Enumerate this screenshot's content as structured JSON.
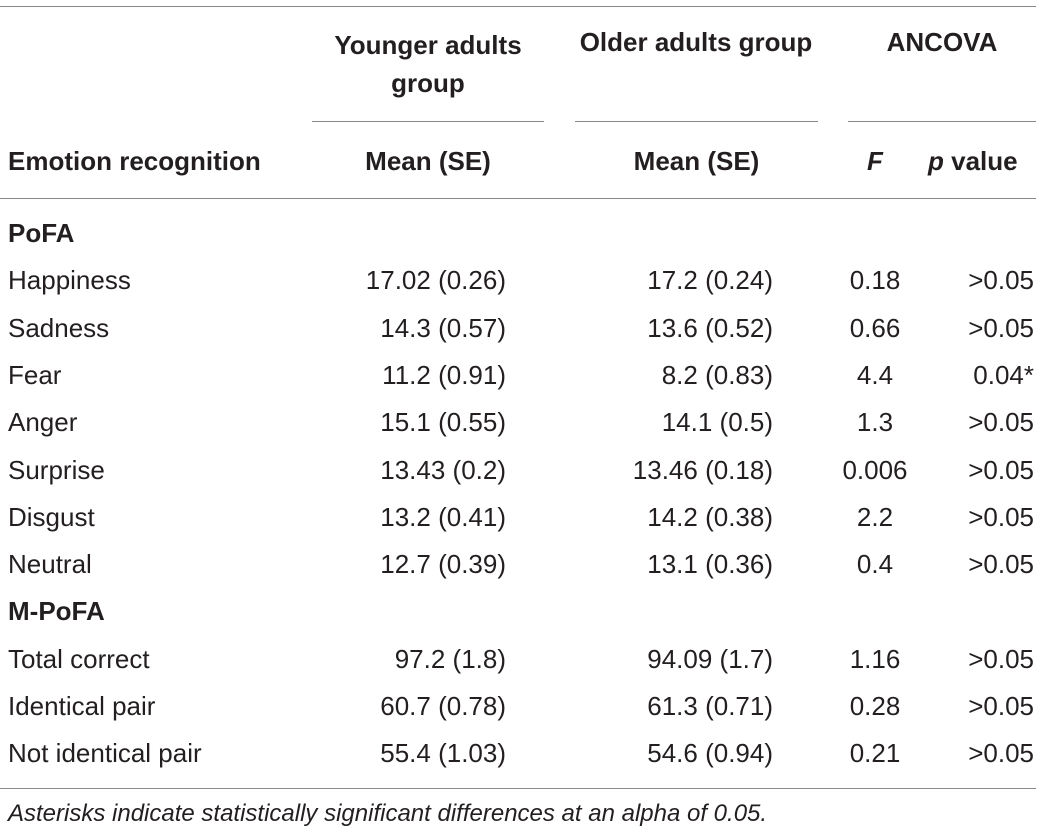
{
  "header": {
    "group1": "Younger adults group",
    "group1_line1": "Younger adults",
    "group1_line2": "group",
    "group2": "Older adults group",
    "ancova": "ANCOVA",
    "row_label": "Emotion recognition",
    "mean_se_1": "Mean (SE)",
    "mean_se_2": "Mean (SE)",
    "f": "F",
    "p": "p",
    "p_suffix": " value"
  },
  "sections": [
    {
      "title": "PoFA",
      "rows": [
        {
          "label": "Happiness",
          "young": "17.02 (0.26)",
          "old": "17.2 (0.24)",
          "f": "0.18",
          "p": ">0.05"
        },
        {
          "label": "Sadness",
          "young": "14.3 (0.57)",
          "old": "13.6 (0.52)",
          "f": "0.66",
          "p": ">0.05"
        },
        {
          "label": "Fear",
          "young": "11.2 (0.91)",
          "old": "8.2 (0.83)",
          "f": "4.4",
          "p": "0.04*"
        },
        {
          "label": "Anger",
          "young": "15.1 (0.55)",
          "old": "14.1 (0.5)",
          "f": "1.3",
          "p": ">0.05"
        },
        {
          "label": "Surprise",
          "young": "13.43 (0.2)",
          "old": "13.46 (0.18)",
          "f": "0.006",
          "p": ">0.05"
        },
        {
          "label": "Disgust",
          "young": "13.2 (0.41)",
          "old": "14.2 (0.38)",
          "f": "2.2",
          "p": ">0.05"
        },
        {
          "label": "Neutral",
          "young": "12.7 (0.39)",
          "old": "13.1 (0.36)",
          "f": "0.4",
          "p": ">0.05"
        }
      ]
    },
    {
      "title": "M-PoFA",
      "rows": [
        {
          "label": "Total correct",
          "young": "97.2 (1.8)",
          "old": "94.09 (1.7)",
          "f": "1.16",
          "p": ">0.05"
        },
        {
          "label": "Identical pair",
          "young": "60.7 (0.78)",
          "old": "61.3 (0.71)",
          "f": "0.28",
          "p": ">0.05"
        },
        {
          "label": "Not identical pair",
          "young": "55.4 (1.03)",
          "old": "54.6 (0.94)",
          "f": "0.21",
          "p": ">0.05"
        }
      ]
    }
  ],
  "footnote": "Asterisks indicate statistically significant differences at an alpha of 0.05."
}
